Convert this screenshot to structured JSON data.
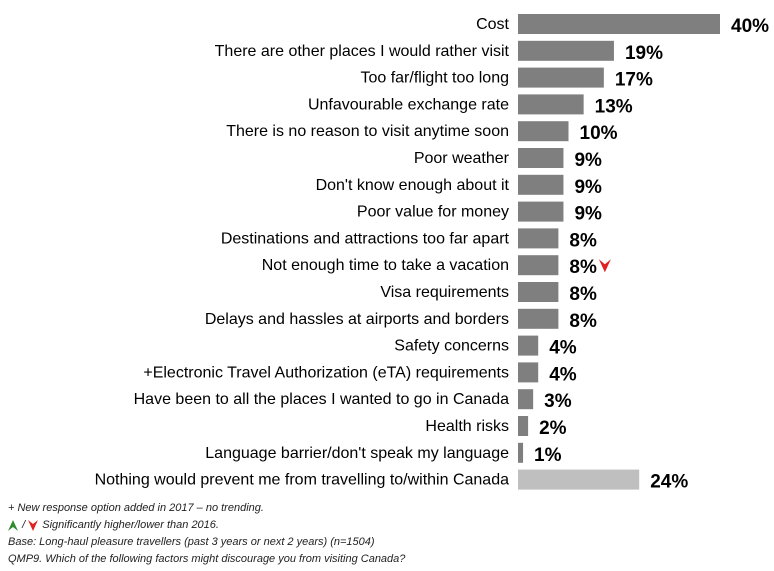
{
  "chart_data": {
    "type": "bar",
    "orientation": "horizontal",
    "categories": [
      "Cost",
      "There are other places I would rather visit",
      "Too far/flight too long",
      "Unfavourable exchange rate",
      "There is no reason to visit anytime soon",
      "Poor weather",
      "Don't know enough about it",
      "Poor value for money",
      "Destinations and attractions too far apart",
      "Not enough time to take a vacation",
      "Visa requirements",
      "Delays and hassles at airports and borders",
      "Safety concerns",
      "+Electronic Travel Authorization (eTA) requirements",
      "Have been to all the places I wanted to go in Canada",
      "Health risks",
      "Language barrier/don't speak my language",
      "Nothing would prevent me from travelling to/within Canada"
    ],
    "values": [
      40,
      19,
      17,
      13,
      10,
      9,
      9,
      9,
      8,
      8,
      8,
      8,
      4,
      4,
      3,
      2,
      1,
      24
    ],
    "value_labels": [
      "40%",
      "19%",
      "17%",
      "13%",
      "10%",
      "9%",
      "9%",
      "9%",
      "8%",
      "8%",
      "8%",
      "8%",
      "4%",
      "4%",
      "3%",
      "2%",
      "1%",
      "24%"
    ],
    "bar_colors": [
      "#7f7f7f",
      "#7f7f7f",
      "#7f7f7f",
      "#7f7f7f",
      "#7f7f7f",
      "#7f7f7f",
      "#7f7f7f",
      "#7f7f7f",
      "#7f7f7f",
      "#7f7f7f",
      "#7f7f7f",
      "#7f7f7f",
      "#7f7f7f",
      "#7f7f7f",
      "#7f7f7f",
      "#7f7f7f",
      "#7f7f7f",
      "#bfbfbf"
    ],
    "significance": [
      null,
      null,
      null,
      null,
      null,
      null,
      null,
      null,
      null,
      "lower",
      null,
      null,
      null,
      null,
      null,
      null,
      null,
      null
    ],
    "xlim": [
      0,
      40
    ],
    "title": "",
    "xlabel": "",
    "ylabel": "",
    "grid": false,
    "legend": "none"
  },
  "colors": {
    "higher_arrow": "#2e8b2e",
    "lower_arrow": "#e02020"
  },
  "notes": {
    "new_option": "+ New response option added in 2017 – no trending.",
    "arrows_legend": "Significantly higher/lower than 2016.",
    "base": "Base: Long-haul pleasure travellers (past 3 years or next 2 years) (n=1504)",
    "question": "QMP9. Which of the following factors might discourage you from visiting Canada?"
  }
}
